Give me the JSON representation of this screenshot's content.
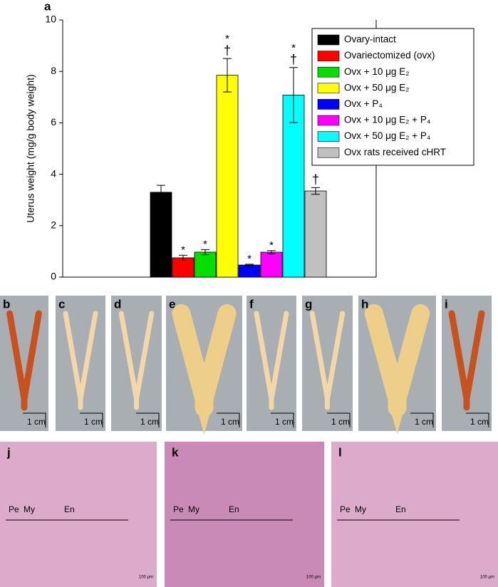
{
  "chart_data": {
    "type": "bar",
    "panel_label": "a",
    "y_label": "Uterus weight (mg/g body weight)",
    "ylim": [
      0,
      10
    ],
    "yticks": [
      0,
      2,
      4,
      6,
      8,
      10
    ],
    "series": [
      {
        "name": "Ovary-intact",
        "color": "#000000",
        "values": [
          3.3
        ],
        "errors": [
          0.27
        ],
        "markers": []
      },
      {
        "name": "Ovariectomized (ovx)",
        "color": "#ff0000",
        "values": [
          0.75
        ],
        "errors": [
          0.1
        ],
        "markers": [
          "*"
        ]
      },
      {
        "name": "Ovx + 10 μg E₂",
        "color": "#00e000",
        "values": [
          0.97
        ],
        "errors": [
          0.1
        ],
        "markers": [
          "*"
        ]
      },
      {
        "name": "Ovx + 50 μg E₂",
        "color": "#ffff00",
        "values": [
          7.85
        ],
        "errors": [
          0.65
        ],
        "markers": [
          "†",
          "*"
        ]
      },
      {
        "name": "Ovx + P₄",
        "color": "#0000ff",
        "values": [
          0.47
        ],
        "errors": [
          0.03
        ],
        "markers": [
          "*"
        ]
      },
      {
        "name": "Ovx + 10 μg E₂ + P₄",
        "color": "#ff00ff",
        "values": [
          0.97
        ],
        "errors": [
          0.06
        ],
        "markers": [
          "*"
        ]
      },
      {
        "name": "Ovx + 50 μg E₂ + P₄",
        "color": "#00ffff",
        "values": [
          7.08
        ],
        "errors": [
          1.07
        ],
        "markers": [
          "†",
          "*"
        ]
      },
      {
        "name": "Ovx rats received cHRT",
        "color": "#c0c0c0",
        "values": [
          3.35
        ],
        "errors": [
          0.13
        ],
        "markers": [
          "†"
        ]
      }
    ]
  },
  "photo_panels": [
    {
      "label": "b",
      "scale": "1 cm"
    },
    {
      "label": "c",
      "scale": "1 cm"
    },
    {
      "label": "d",
      "scale": "1 cm"
    },
    {
      "label": "e",
      "scale": "1 cm"
    },
    {
      "label": "f",
      "scale": "1 cm"
    },
    {
      "label": "g",
      "scale": "1 cm"
    },
    {
      "label": "h",
      "scale": "1 cm"
    },
    {
      "label": "i",
      "scale": "1 cm"
    }
  ],
  "histology_panels": [
    {
      "label": "j",
      "layers": [
        "Pe",
        "My",
        "En"
      ],
      "scale": "100 μm"
    },
    {
      "label": "k",
      "layers": [
        "Pe",
        "My",
        "En"
      ],
      "scale": "100 μm"
    },
    {
      "label": "l",
      "layers": [
        "Pe",
        "My",
        "En"
      ],
      "scale": "100 μm"
    }
  ]
}
